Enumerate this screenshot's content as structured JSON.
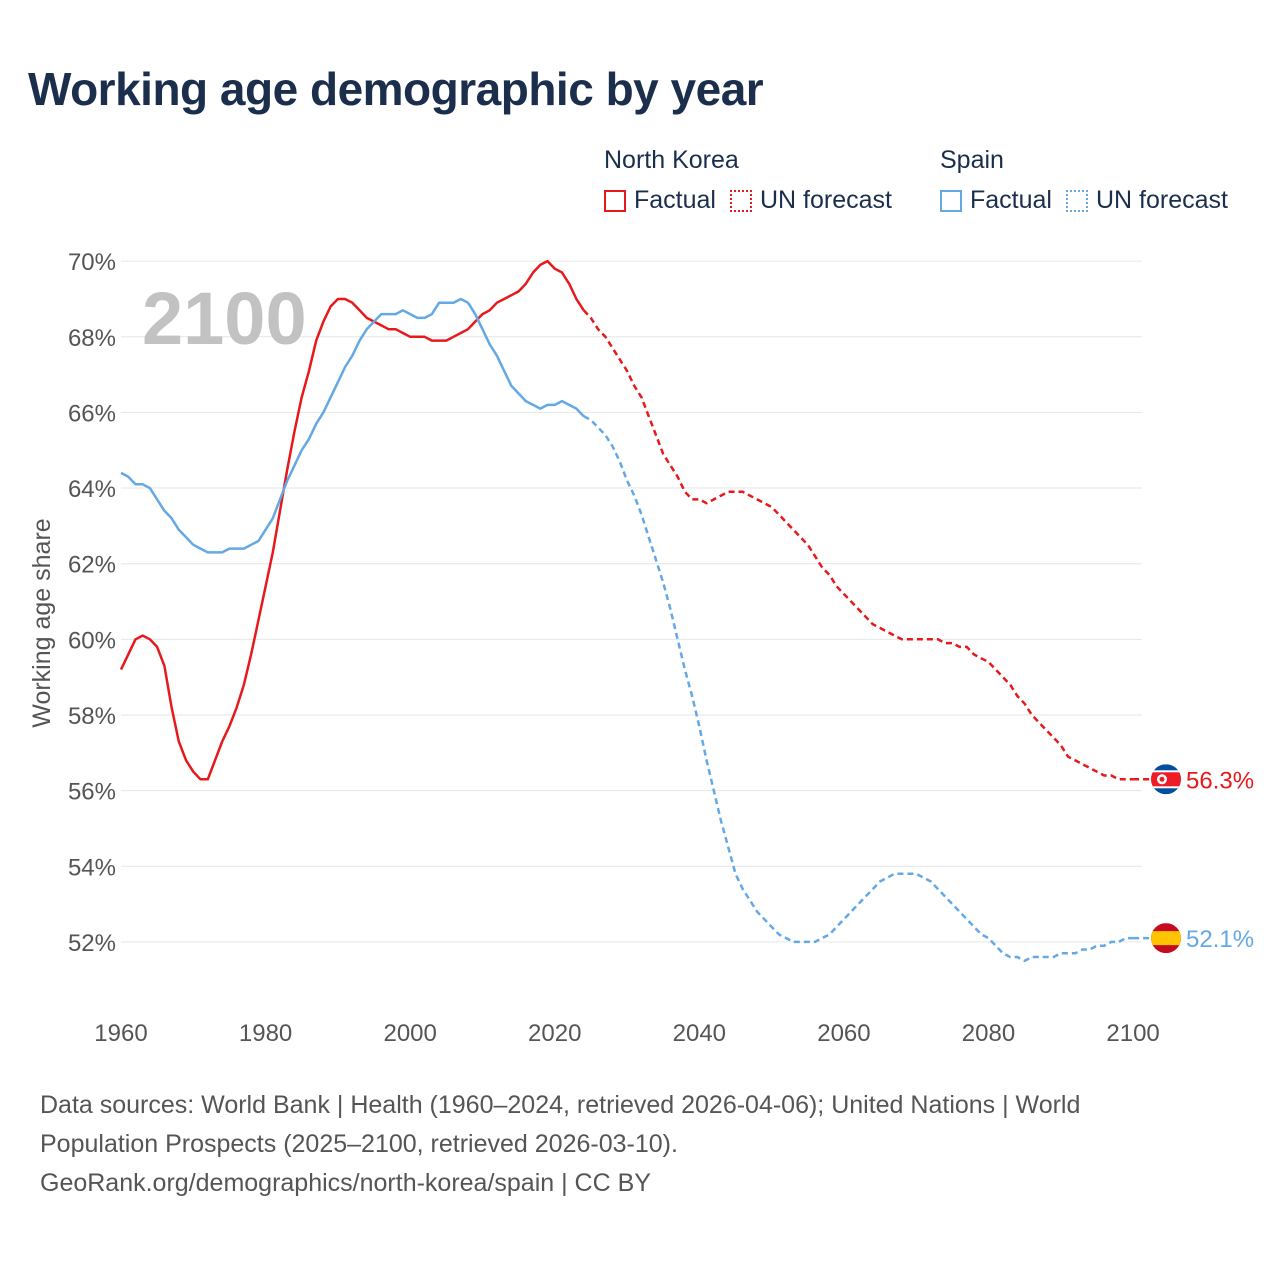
{
  "title": "Working age demographic by year",
  "legend": {
    "groups": [
      {
        "name": "North Korea",
        "color": "#e8191c",
        "factual_label": "Factual",
        "forecast_label": "UN forecast"
      },
      {
        "name": "Spain",
        "color": "#64a8e4",
        "factual_label": "Factual",
        "forecast_label": "UN forecast"
      }
    ]
  },
  "year_watermark": "2100",
  "chart_data": {
    "type": "line",
    "title": "Working age demographic by year",
    "xlabel": "",
    "ylabel": "Working age share",
    "xlim": [
      1960,
      2104
    ],
    "ylim": [
      50.2,
      70.4
    ],
    "x_ticks": [
      1960,
      1980,
      2000,
      2020,
      2040,
      2060,
      2080,
      2100
    ],
    "y_ticks": [
      52,
      54,
      56,
      58,
      60,
      62,
      64,
      66,
      68,
      70
    ],
    "y_tick_labels": [
      "52%",
      "54%",
      "56%",
      "58%",
      "60%",
      "62%",
      "64%",
      "66%",
      "68%",
      "70%"
    ],
    "forecast_start_year": 2024,
    "series": [
      {
        "name": "North Korea",
        "color": "#e8191c",
        "end_label": "56.3%",
        "points": [
          [
            1960,
            59.2
          ],
          [
            1962,
            60.0
          ],
          [
            1963,
            60.1
          ],
          [
            1964,
            60.0
          ],
          [
            1965,
            59.8
          ],
          [
            1966,
            59.3
          ],
          [
            1967,
            58.2
          ],
          [
            1968,
            57.3
          ],
          [
            1969,
            56.8
          ],
          [
            1970,
            56.5
          ],
          [
            1971,
            56.3
          ],
          [
            1972,
            56.3
          ],
          [
            1973,
            56.8
          ],
          [
            1974,
            57.3
          ],
          [
            1975,
            57.7
          ],
          [
            1976,
            58.2
          ],
          [
            1977,
            58.8
          ],
          [
            1978,
            59.6
          ],
          [
            1979,
            60.5
          ],
          [
            1980,
            61.4
          ],
          [
            1981,
            62.3
          ],
          [
            1982,
            63.4
          ],
          [
            1983,
            64.5
          ],
          [
            1984,
            65.5
          ],
          [
            1985,
            66.4
          ],
          [
            1986,
            67.1
          ],
          [
            1987,
            67.9
          ],
          [
            1988,
            68.4
          ],
          [
            1989,
            68.8
          ],
          [
            1990,
            69.0
          ],
          [
            1991,
            69.0
          ],
          [
            1992,
            68.9
          ],
          [
            1993,
            68.7
          ],
          [
            1994,
            68.5
          ],
          [
            1995,
            68.4
          ],
          [
            1996,
            68.3
          ],
          [
            1997,
            68.2
          ],
          [
            1998,
            68.2
          ],
          [
            1999,
            68.1
          ],
          [
            2000,
            68.0
          ],
          [
            2001,
            68.0
          ],
          [
            2002,
            68.0
          ],
          [
            2003,
            67.9
          ],
          [
            2004,
            67.9
          ],
          [
            2005,
            67.9
          ],
          [
            2006,
            68.0
          ],
          [
            2007,
            68.1
          ],
          [
            2008,
            68.2
          ],
          [
            2009,
            68.4
          ],
          [
            2010,
            68.6
          ],
          [
            2011,
            68.7
          ],
          [
            2012,
            68.9
          ],
          [
            2013,
            69.0
          ],
          [
            2014,
            69.1
          ],
          [
            2015,
            69.2
          ],
          [
            2016,
            69.4
          ],
          [
            2017,
            69.7
          ],
          [
            2018,
            69.9
          ],
          [
            2019,
            70.0
          ],
          [
            2020,
            69.8
          ],
          [
            2021,
            69.7
          ],
          [
            2022,
            69.4
          ],
          [
            2023,
            69.0
          ],
          [
            2024,
            68.7
          ],
          [
            2025,
            68.5
          ],
          [
            2026,
            68.2
          ],
          [
            2027,
            68.0
          ],
          [
            2028,
            67.7
          ],
          [
            2029,
            67.4
          ],
          [
            2030,
            67.1
          ],
          [
            2031,
            66.7
          ],
          [
            2032,
            66.4
          ],
          [
            2033,
            65.9
          ],
          [
            2034,
            65.4
          ],
          [
            2035,
            64.9
          ],
          [
            2036,
            64.6
          ],
          [
            2037,
            64.3
          ],
          [
            2038,
            63.9
          ],
          [
            2039,
            63.7
          ],
          [
            2040,
            63.7
          ],
          [
            2041,
            63.6
          ],
          [
            2042,
            63.7
          ],
          [
            2043,
            63.8
          ],
          [
            2044,
            63.9
          ],
          [
            2045,
            63.9
          ],
          [
            2046,
            63.9
          ],
          [
            2047,
            63.8
          ],
          [
            2048,
            63.7
          ],
          [
            2049,
            63.6
          ],
          [
            2050,
            63.5
          ],
          [
            2051,
            63.3
          ],
          [
            2052,
            63.1
          ],
          [
            2053,
            62.9
          ],
          [
            2054,
            62.7
          ],
          [
            2055,
            62.5
          ],
          [
            2056,
            62.2
          ],
          [
            2057,
            61.9
          ],
          [
            2058,
            61.7
          ],
          [
            2059,
            61.4
          ],
          [
            2060,
            61.2
          ],
          [
            2061,
            61.0
          ],
          [
            2062,
            60.8
          ],
          [
            2063,
            60.6
          ],
          [
            2064,
            60.4
          ],
          [
            2065,
            60.3
          ],
          [
            2066,
            60.2
          ],
          [
            2067,
            60.1
          ],
          [
            2068,
            60.0
          ],
          [
            2069,
            60.0
          ],
          [
            2070,
            60.0
          ],
          [
            2071,
            60.0
          ],
          [
            2072,
            60.0
          ],
          [
            2073,
            60.0
          ],
          [
            2074,
            59.9
          ],
          [
            2075,
            59.9
          ],
          [
            2076,
            59.8
          ],
          [
            2077,
            59.8
          ],
          [
            2078,
            59.6
          ],
          [
            2079,
            59.5
          ],
          [
            2080,
            59.4
          ],
          [
            2081,
            59.2
          ],
          [
            2082,
            59.0
          ],
          [
            2083,
            58.8
          ],
          [
            2084,
            58.5
          ],
          [
            2085,
            58.3
          ],
          [
            2086,
            58.0
          ],
          [
            2087,
            57.8
          ],
          [
            2088,
            57.6
          ],
          [
            2089,
            57.4
          ],
          [
            2090,
            57.2
          ],
          [
            2091,
            56.9
          ],
          [
            2092,
            56.8
          ],
          [
            2093,
            56.7
          ],
          [
            2094,
            56.6
          ],
          [
            2095,
            56.5
          ],
          [
            2096,
            56.4
          ],
          [
            2097,
            56.4
          ],
          [
            2098,
            56.3
          ],
          [
            2099,
            56.3
          ],
          [
            2100,
            56.3
          ]
        ]
      },
      {
        "name": "Spain",
        "color": "#64a8e4",
        "end_label": "52.1%",
        "points": [
          [
            1960,
            64.4
          ],
          [
            1961,
            64.3
          ],
          [
            1962,
            64.1
          ],
          [
            1963,
            64.1
          ],
          [
            1964,
            64.0
          ],
          [
            1965,
            63.7
          ],
          [
            1966,
            63.4
          ],
          [
            1967,
            63.2
          ],
          [
            1968,
            62.9
          ],
          [
            1969,
            62.7
          ],
          [
            1970,
            62.5
          ],
          [
            1971,
            62.4
          ],
          [
            1972,
            62.3
          ],
          [
            1973,
            62.3
          ],
          [
            1974,
            62.3
          ],
          [
            1975,
            62.4
          ],
          [
            1976,
            62.4
          ],
          [
            1977,
            62.4
          ],
          [
            1978,
            62.5
          ],
          [
            1979,
            62.6
          ],
          [
            1980,
            62.9
          ],
          [
            1981,
            63.2
          ],
          [
            1982,
            63.7
          ],
          [
            1983,
            64.2
          ],
          [
            1984,
            64.6
          ],
          [
            1985,
            65.0
          ],
          [
            1986,
            65.3
          ],
          [
            1987,
            65.7
          ],
          [
            1988,
            66.0
          ],
          [
            1989,
            66.4
          ],
          [
            1990,
            66.8
          ],
          [
            1991,
            67.2
          ],
          [
            1992,
            67.5
          ],
          [
            1993,
            67.9
          ],
          [
            1994,
            68.2
          ],
          [
            1995,
            68.4
          ],
          [
            1996,
            68.6
          ],
          [
            1997,
            68.6
          ],
          [
            1998,
            68.6
          ],
          [
            1999,
            68.7
          ],
          [
            2000,
            68.6
          ],
          [
            2001,
            68.5
          ],
          [
            2002,
            68.5
          ],
          [
            2003,
            68.6
          ],
          [
            2004,
            68.9
          ],
          [
            2005,
            68.9
          ],
          [
            2006,
            68.9
          ],
          [
            2007,
            69.0
          ],
          [
            2008,
            68.9
          ],
          [
            2009,
            68.6
          ],
          [
            2010,
            68.2
          ],
          [
            2011,
            67.8
          ],
          [
            2012,
            67.5
          ],
          [
            2013,
            67.1
          ],
          [
            2014,
            66.7
          ],
          [
            2015,
            66.5
          ],
          [
            2016,
            66.3
          ],
          [
            2017,
            66.2
          ],
          [
            2018,
            66.1
          ],
          [
            2019,
            66.2
          ],
          [
            2020,
            66.2
          ],
          [
            2021,
            66.3
          ],
          [
            2022,
            66.2
          ],
          [
            2023,
            66.1
          ],
          [
            2024,
            65.9
          ],
          [
            2025,
            65.8
          ],
          [
            2026,
            65.6
          ],
          [
            2027,
            65.4
          ],
          [
            2028,
            65.1
          ],
          [
            2029,
            64.7
          ],
          [
            2030,
            64.2
          ],
          [
            2031,
            63.8
          ],
          [
            2032,
            63.3
          ],
          [
            2033,
            62.7
          ],
          [
            2034,
            62.1
          ],
          [
            2035,
            61.5
          ],
          [
            2036,
            60.8
          ],
          [
            2037,
            60.0
          ],
          [
            2038,
            59.2
          ],
          [
            2039,
            58.5
          ],
          [
            2040,
            57.7
          ],
          [
            2041,
            56.8
          ],
          [
            2042,
            56.0
          ],
          [
            2043,
            55.2
          ],
          [
            2044,
            54.5
          ],
          [
            2045,
            53.8
          ],
          [
            2046,
            53.4
          ],
          [
            2047,
            53.1
          ],
          [
            2048,
            52.8
          ],
          [
            2049,
            52.6
          ],
          [
            2050,
            52.4
          ],
          [
            2051,
            52.2
          ],
          [
            2052,
            52.1
          ],
          [
            2053,
            52.0
          ],
          [
            2054,
            52.0
          ],
          [
            2055,
            52.0
          ],
          [
            2056,
            52.0
          ],
          [
            2057,
            52.1
          ],
          [
            2058,
            52.2
          ],
          [
            2059,
            52.4
          ],
          [
            2060,
            52.6
          ],
          [
            2061,
            52.8
          ],
          [
            2062,
            53.0
          ],
          [
            2063,
            53.2
          ],
          [
            2064,
            53.4
          ],
          [
            2065,
            53.6
          ],
          [
            2066,
            53.7
          ],
          [
            2067,
            53.8
          ],
          [
            2068,
            53.8
          ],
          [
            2069,
            53.8
          ],
          [
            2070,
            53.8
          ],
          [
            2071,
            53.7
          ],
          [
            2072,
            53.6
          ],
          [
            2073,
            53.4
          ],
          [
            2074,
            53.2
          ],
          [
            2075,
            53.0
          ],
          [
            2076,
            52.8
          ],
          [
            2077,
            52.6
          ],
          [
            2078,
            52.4
          ],
          [
            2079,
            52.2
          ],
          [
            2080,
            52.1
          ],
          [
            2081,
            51.9
          ],
          [
            2082,
            51.7
          ],
          [
            2083,
            51.6
          ],
          [
            2084,
            51.6
          ],
          [
            2085,
            51.5
          ],
          [
            2086,
            51.6
          ],
          [
            2087,
            51.6
          ],
          [
            2088,
            51.6
          ],
          [
            2089,
            51.6
          ],
          [
            2090,
            51.7
          ],
          [
            2091,
            51.7
          ],
          [
            2092,
            51.7
          ],
          [
            2093,
            51.8
          ],
          [
            2094,
            51.8
          ],
          [
            2095,
            51.9
          ],
          [
            2096,
            51.9
          ],
          [
            2097,
            52.0
          ],
          [
            2098,
            52.0
          ],
          [
            2099,
            52.1
          ],
          [
            2100,
            52.1
          ]
        ]
      }
    ]
  },
  "sources": {
    "line1": "Data sources: World Bank | Health (1960–2024, retrieved 2026-04-06); United Nations | World Population Prospects (2025–2100, retrieved 2026-03-10).",
    "line2": "GeoRank.org/demographics/north-korea/spain | CC BY"
  },
  "colors": {
    "north_korea": "#e8191c",
    "spain": "#64a8e4",
    "title": "#1b2f4d",
    "axis_text": "#555555",
    "grid": "#e6e6e6",
    "watermark": "#c2c2c2"
  }
}
